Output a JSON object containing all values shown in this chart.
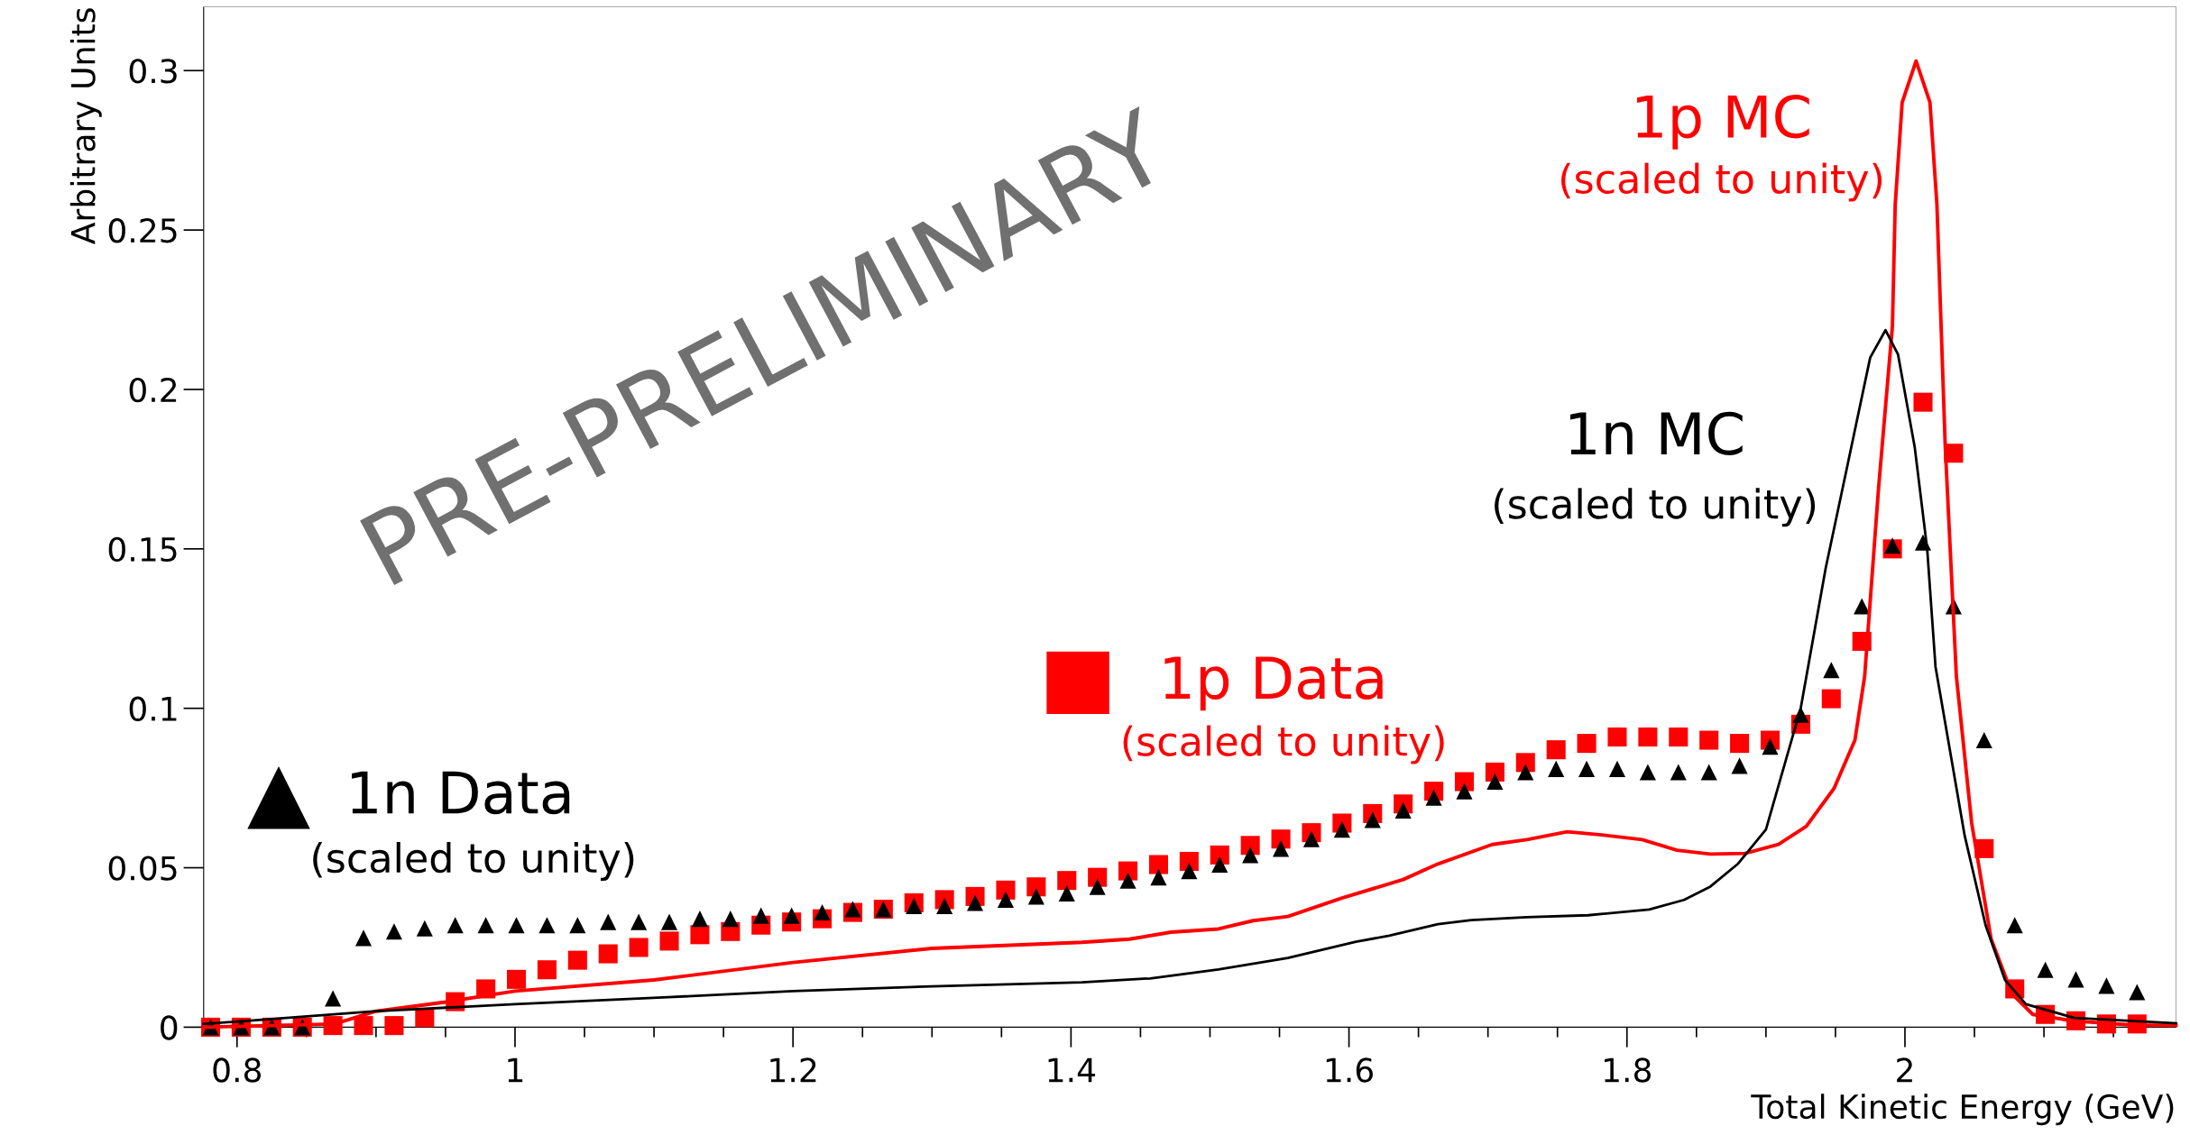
{
  "chart_data": {
    "type": "scatter",
    "xlabel": "Total Kinetic Energy (GeV)",
    "ylabel": "Arbitrary Units",
    "xlim": [
      0.776,
      2.195
    ],
    "ylim": [
      0,
      0.32
    ],
    "xticks": [
      0.8,
      1,
      1.2,
      1.4,
      1.6,
      1.8,
      2
    ],
    "yticks": [
      0,
      0.05,
      0.1,
      0.15,
      0.2,
      0.25,
      0.3
    ],
    "grid": false,
    "legend": "bottom left",
    "annotations": [
      "(scaled to unity)",
      "(scaled to unity)",
      "(scaled to unity)",
      "(scaled to unity)",
      "PRE-PRELIMINARY"
    ],
    "series": [
      {
        "name": "1n Data",
        "marker": "triangle",
        "color": "#000000",
        "x": [
          0.781,
          0.803,
          0.825,
          0.847,
          0.869,
          0.891,
          0.913,
          0.935,
          0.957,
          0.979,
          1.001,
          1.023,
          1.045,
          1.067,
          1.089,
          1.111,
          1.133,
          1.155,
          1.177,
          1.199,
          1.221,
          1.243,
          1.265,
          1.287,
          1.309,
          1.331,
          1.353,
          1.375,
          1.397,
          1.419,
          1.441,
          1.463,
          1.485,
          1.507,
          1.529,
          1.551,
          1.573,
          1.595,
          1.617,
          1.639,
          1.661,
          1.683,
          1.705,
          1.727,
          1.749,
          1.771,
          1.793,
          1.815,
          1.837,
          1.859,
          1.881,
          1.903,
          1.925,
          1.947,
          1.969,
          1.991,
          2.013,
          2.035,
          2.057,
          2.079,
          2.101,
          2.123,
          2.145,
          2.167
        ],
        "values": [
          0,
          0,
          0,
          0,
          0.009,
          0.028,
          0.03,
          0.031,
          0.032,
          0.032,
          0.032,
          0.032,
          0.032,
          0.033,
          0.033,
          0.033,
          0.034,
          0.034,
          0.035,
          0.035,
          0.036,
          0.037,
          0.037,
          0.038,
          0.038,
          0.039,
          0.04,
          0.041,
          0.042,
          0.044,
          0.046,
          0.047,
          0.049,
          0.051,
          0.054,
          0.056,
          0.059,
          0.062,
          0.065,
          0.068,
          0.072,
          0.074,
          0.077,
          0.08,
          0.081,
          0.081,
          0.081,
          0.08,
          0.08,
          0.08,
          0.082,
          0.088,
          0.098,
          0.112,
          0.132,
          0.151,
          0.152,
          0.132,
          0.09,
          0.032,
          0.018,
          0.015,
          0.013,
          0.011
        ]
      },
      {
        "name": "1p Data",
        "marker": "square",
        "color": "#ff0000",
        "x": [
          0.781,
          0.803,
          0.825,
          0.847,
          0.869,
          0.891,
          0.913,
          0.935,
          0.957,
          0.979,
          1.001,
          1.023,
          1.045,
          1.067,
          1.089,
          1.111,
          1.133,
          1.155,
          1.177,
          1.199,
          1.221,
          1.243,
          1.265,
          1.287,
          1.309,
          1.331,
          1.353,
          1.375,
          1.397,
          1.419,
          1.441,
          1.463,
          1.485,
          1.507,
          1.529,
          1.551,
          1.573,
          1.595,
          1.617,
          1.639,
          1.661,
          1.683,
          1.705,
          1.727,
          1.749,
          1.771,
          1.793,
          1.815,
          1.837,
          1.859,
          1.881,
          1.903,
          1.925,
          1.947,
          1.969,
          1.991,
          2.013,
          2.035,
          2.057,
          2.079,
          2.101,
          2.123,
          2.145,
          2.167
        ],
        "values": [
          0,
          0,
          0,
          0,
          0.0005,
          0.0005,
          0.0005,
          0.003,
          0.008,
          0.012,
          0.015,
          0.018,
          0.021,
          0.023,
          0.025,
          0.027,
          0.029,
          0.03,
          0.032,
          0.033,
          0.034,
          0.036,
          0.037,
          0.039,
          0.04,
          0.041,
          0.043,
          0.044,
          0.046,
          0.047,
          0.049,
          0.051,
          0.052,
          0.054,
          0.057,
          0.059,
          0.061,
          0.064,
          0.067,
          0.07,
          0.074,
          0.077,
          0.08,
          0.083,
          0.087,
          0.089,
          0.091,
          0.091,
          0.091,
          0.09,
          0.089,
          0.09,
          0.095,
          0.103,
          0.121,
          0.15,
          0.196,
          0.18,
          0.056,
          0.012,
          0.004,
          0.002,
          0.001,
          0.001
        ]
      },
      {
        "name": "1n MC",
        "type": "line",
        "line_style": "solid",
        "color": "#000000",
        "x": [
          0.776,
          0.9,
          1.0,
          1.11,
          1.2,
          1.3,
          1.408,
          1.457,
          1.506,
          1.556,
          1.605,
          1.629,
          1.664,
          1.688,
          1.728,
          1.772,
          1.816,
          1.841,
          1.86,
          1.88,
          1.9,
          1.925,
          1.943,
          1.96,
          1.975,
          1.986,
          1.995,
          2.007,
          2.016,
          2.022,
          2.043,
          2.058,
          2.072,
          2.087,
          2.122,
          2.195
        ],
        "values": [
          0.001,
          0.005,
          0.0072,
          0.0094,
          0.0113,
          0.0128,
          0.0141,
          0.0153,
          0.0181,
          0.0217,
          0.0268,
          0.0287,
          0.0323,
          0.0336,
          0.0345,
          0.0351,
          0.0369,
          0.0399,
          0.0441,
          0.0513,
          0.062,
          0.1,
          0.144,
          0.179,
          0.21,
          0.2186,
          0.211,
          0.182,
          0.15,
          0.113,
          0.06,
          0.032,
          0.0148,
          0.0072,
          0.0029,
          0.0012
        ]
      },
      {
        "name": "1p MC",
        "type": "line",
        "line_style": "solid",
        "color": "#ff0000",
        "x": [
          0.776,
          0.87,
          0.9,
          0.95,
          1.0,
          1.1,
          1.2,
          1.3,
          1.408,
          1.442,
          1.472,
          1.506,
          1.531,
          1.556,
          1.595,
          1.639,
          1.664,
          1.703,
          1.728,
          1.757,
          1.782,
          1.811,
          1.836,
          1.86,
          1.885,
          1.909,
          1.929,
          1.949,
          1.964,
          1.971,
          1.981,
          1.991,
          1.993,
          1.998,
          2.008,
          2.018,
          2.023,
          2.026,
          2.029,
          2.037,
          2.048,
          2.062,
          2.077,
          2.092,
          2.122,
          2.166,
          2.195
        ],
        "values": [
          0,
          0.001,
          0.005,
          0.0079,
          0.0113,
          0.0148,
          0.0203,
          0.0247,
          0.0266,
          0.0276,
          0.0298,
          0.0308,
          0.0334,
          0.0347,
          0.0405,
          0.0463,
          0.0512,
          0.0573,
          0.0588,
          0.0613,
          0.0603,
          0.0588,
          0.0555,
          0.0543,
          0.0545,
          0.0573,
          0.063,
          0.0749,
          0.09,
          0.11,
          0.169,
          0.22,
          0.258,
          0.29,
          0.303,
          0.29,
          0.258,
          0.22,
          0.182,
          0.11,
          0.064,
          0.0276,
          0.0105,
          0.004,
          0.0019,
          0.0006,
          0.0006
        ]
      }
    ]
  }
}
